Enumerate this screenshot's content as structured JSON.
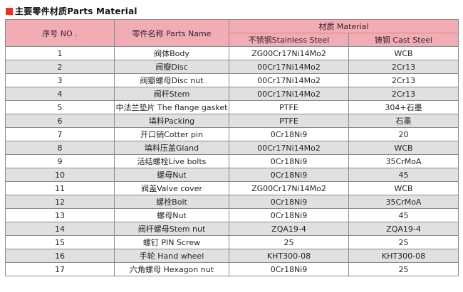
{
  "title": {
    "text": "主要零件材质Parts Material"
  },
  "table": {
    "headers": {
      "no": "序号 NO .",
      "parts_name": "零件名称  Parts Name",
      "material": "材质  Material",
      "stainless": "不锈钢Stainless Steel",
      "cast": "铸钢  Cast Steel"
    },
    "rows": [
      {
        "no": "1",
        "name": "阀体Body",
        "stainless": "ZG00Cr17Ni14Mo2",
        "cast": "WCB"
      },
      {
        "no": "2",
        "name": "阀瓣Disc",
        "stainless": "00Cr17Ni14Mo2",
        "cast": "2Cr13"
      },
      {
        "no": "3",
        "name": "阀瓣螺母Disc nut",
        "stainless": "00Cr17Ni14Mo2",
        "cast": "2Cr13"
      },
      {
        "no": "4",
        "name": "阀杆Stem",
        "stainless": "00Cr17Ni14Mo2",
        "cast": "2Cr13"
      },
      {
        "no": "5",
        "name": "中法兰垫片 The flange gasket",
        "stainless": "PTFE",
        "cast": "304+石墨"
      },
      {
        "no": "6",
        "name": "填料Packing",
        "stainless": "PTFE",
        "cast": "石墨"
      },
      {
        "no": "7",
        "name": "开口销Cotter pin",
        "stainless": "0Cr18Ni9",
        "cast": "20"
      },
      {
        "no": "8",
        "name": "填料压盖Gland",
        "stainless": "00Cr17Ni14Mo2",
        "cast": "WCB"
      },
      {
        "no": "9",
        "name": "活结螺栓Live bolts",
        "stainless": "0Cr18Ni9",
        "cast": "35CrMoA"
      },
      {
        "no": "10",
        "name": "螺母Nut",
        "stainless": "0Cr18Ni9",
        "cast": "45"
      },
      {
        "no": "11",
        "name": "阀盖Valve cover",
        "stainless": "ZG00Cr17Ni14Mo2",
        "cast": "WCB"
      },
      {
        "no": "12",
        "name": "螺栓Bolt",
        "stainless": "0Cr18Ni9",
        "cast": "35CrMoA"
      },
      {
        "no": "13",
        "name": "螺母Nut",
        "stainless": "0Cr18Ni9",
        "cast": "45"
      },
      {
        "no": "14",
        "name": "阀杆螺母Stem nut",
        "stainless": "ZQA19-4",
        "cast": "ZQA19-4"
      },
      {
        "no": "15",
        "name": "螺钉 PIN Screw",
        "stainless": "25",
        "cast": "25"
      },
      {
        "no": "16",
        "name": "手轮 Hand wheel",
        "stainless": "KHT300-08",
        "cast": "KHT300-08"
      },
      {
        "no": "17",
        "name": "六角螺母 Hexagon nut",
        "stainless": "0Cr18Ni9",
        "cast": "25"
      }
    ]
  },
  "colors": {
    "header_pink": "#f2acb3",
    "header_divider_pink": "#d6848e",
    "stripe_gray": "#e0e0e0",
    "border_gray": "#8a8a8a",
    "bullet_red": "#e2342b"
  }
}
